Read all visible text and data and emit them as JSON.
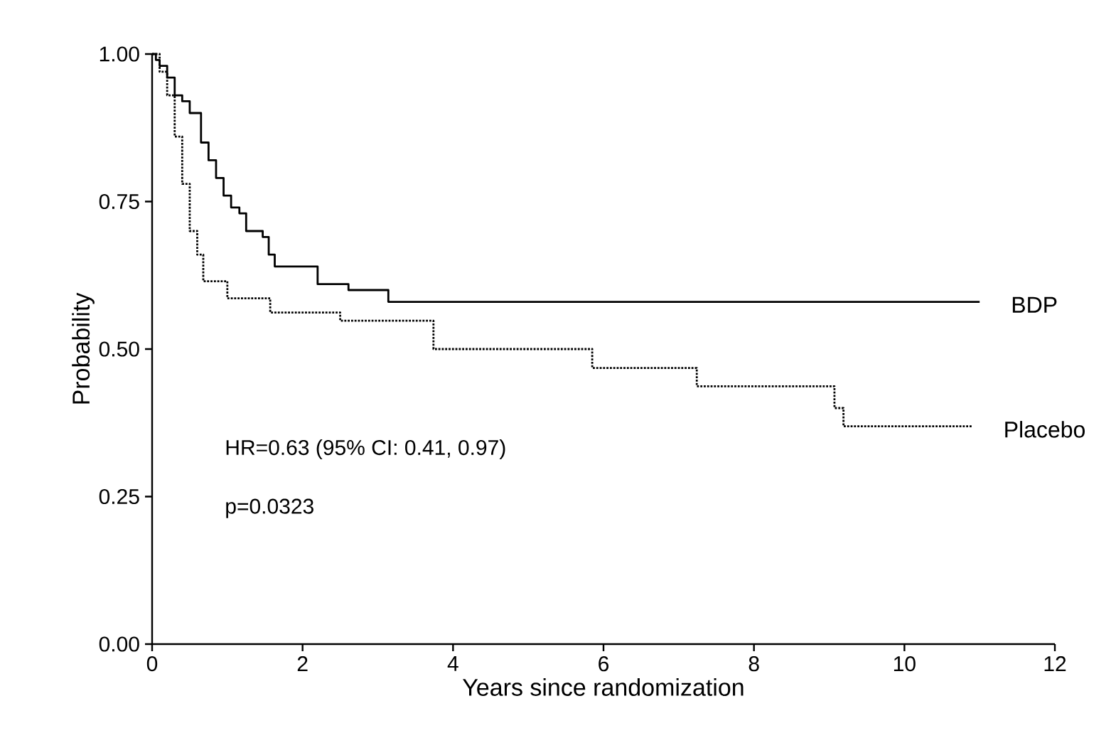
{
  "chart_data": {
    "type": "step",
    "xlabel": "Years since randomization",
    "ylabel": "Probability",
    "xlim": [
      0,
      12
    ],
    "xticks": [
      0,
      2,
      4,
      6,
      8,
      10,
      12
    ],
    "ylim": [
      0,
      1
    ],
    "yticks": [
      {
        "value": 0,
        "label": "0.00"
      },
      {
        "value": 0.25,
        "label": "0.25"
      },
      {
        "value": 0.5,
        "label": "0.50"
      },
      {
        "value": 0.75,
        "label": "0.75"
      },
      {
        "value": 1,
        "label": "1.00"
      }
    ],
    "grid": false,
    "legend": false,
    "annotations": [
      "HR=0.63 (95% CI: 0.41, 0.97)",
      "p=0.0323"
    ],
    "series": [
      {
        "name": "BDP",
        "color": "#000000",
        "line_style": "solid",
        "x": [
          0,
          0.05,
          0.1,
          0.2,
          0.3,
          0.4,
          0.5,
          0.65,
          0.75,
          0.85,
          0.95,
          1.05,
          1.16,
          1.25,
          1.47,
          1.55,
          1.63,
          2.2,
          2.61,
          3.14,
          11.0
        ],
        "values": [
          1,
          0.99,
          0.98,
          0.96,
          0.93,
          0.92,
          0.9,
          0.85,
          0.82,
          0.79,
          0.76,
          0.74,
          0.73,
          0.7,
          0.69,
          0.66,
          0.64,
          0.61,
          0.6,
          0.58,
          0.58
        ]
      },
      {
        "name": "Placebo",
        "color": "#000000",
        "line_style": "dotted",
        "x": [
          0,
          0.1,
          0.2,
          0.3,
          0.4,
          0.5,
          0.6,
          0.68,
          1.0,
          1.57,
          2.5,
          3.74,
          5.85,
          7.24,
          9.07,
          9.19,
          10.9
        ],
        "values": [
          1,
          0.97,
          0.93,
          0.86,
          0.78,
          0.7,
          0.66,
          0.615,
          0.586,
          0.562,
          0.548,
          0.5,
          0.468,
          0.437,
          0.4,
          0.369,
          0.369
        ]
      }
    ]
  }
}
